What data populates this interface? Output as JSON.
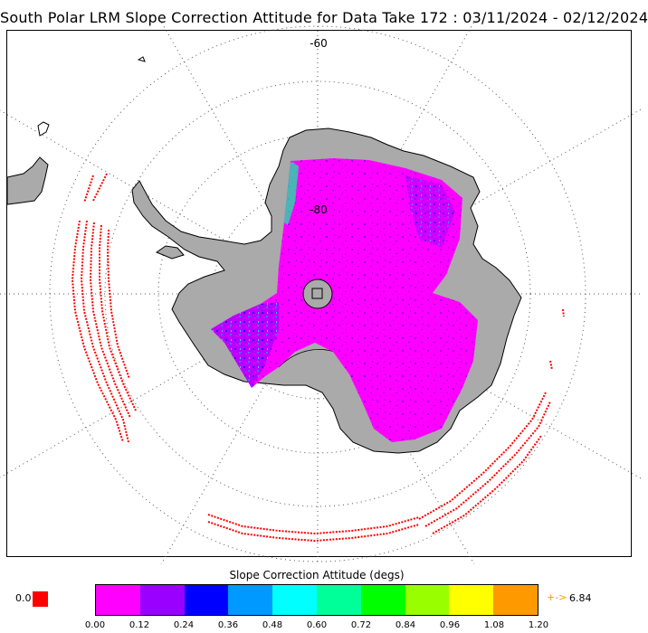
{
  "title": "South Polar LRM Slope Correction Attitude for Data Take 172 : 03/11/2024 - 02/12/2024",
  "map": {
    "lat_labels": [
      "-60",
      "-80"
    ],
    "colors": {
      "land": "#aaaaaa",
      "graticule": "#555555",
      "outlier": "#ff0000",
      "data_main": "#ff00ff"
    }
  },
  "colorbar": {
    "title": "Slope Correction Attitude (degs)",
    "colors": [
      "#ff00ff",
      "#9900ff",
      "#0000ff",
      "#0099ff",
      "#00ffff",
      "#00ff99",
      "#00ff00",
      "#99ff00",
      "#ffff00",
      "#ff9900"
    ],
    "tick_labels": [
      "0.00",
      "0.12",
      "0.24",
      "0.36",
      "0.48",
      "0.60",
      "0.72",
      "0.84",
      "0.96",
      "1.08",
      "1.20"
    ],
    "low_value": "0.0",
    "low_color": "#ff0000",
    "high_arrow": "+->",
    "high_value": "6.84",
    "high_color": "#ff9900"
  }
}
